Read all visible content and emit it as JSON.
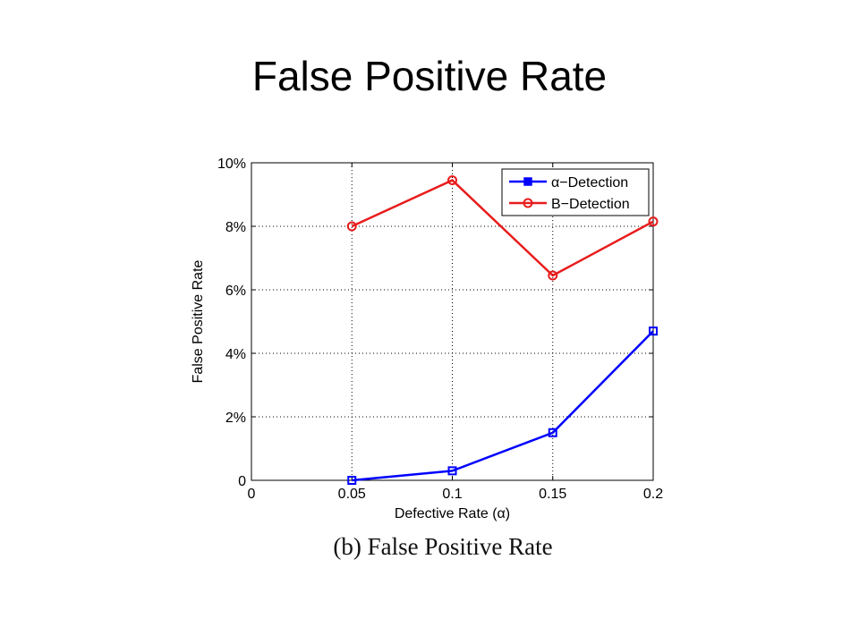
{
  "slide": {
    "title": "False Positive Rate",
    "caption": "(b)  False Positive Rate"
  },
  "chart_data": {
    "type": "line",
    "xlabel": "Defective Rate (α)",
    "ylabel": "False Positive Rate",
    "xlim": [
      0,
      0.2
    ],
    "ylim": [
      0,
      10
    ],
    "x_ticks": [
      {
        "value": 0,
        "label": "0"
      },
      {
        "value": 0.05,
        "label": "0.05"
      },
      {
        "value": 0.1,
        "label": "0.1"
      },
      {
        "value": 0.15,
        "label": "0.15"
      },
      {
        "value": 0.2,
        "label": "0.2"
      }
    ],
    "y_ticks": [
      {
        "value": 0,
        "label": "0"
      },
      {
        "value": 2,
        "label": "2%"
      },
      {
        "value": 4,
        "label": "4%"
      },
      {
        "value": 6,
        "label": "6%"
      },
      {
        "value": 8,
        "label": "8%"
      },
      {
        "value": 10,
        "label": "10%"
      }
    ],
    "grid": true,
    "legend_position": "top-right",
    "x": [
      0.05,
      0.1,
      0.15,
      0.2
    ],
    "series": [
      {
        "name": "α−Detection",
        "values": [
          0.0,
          0.3,
          1.5,
          4.7
        ],
        "color": "#0000ff",
        "marker": "square"
      },
      {
        "name": "B−Detection",
        "values": [
          8.0,
          9.45,
          6.45,
          8.15
        ],
        "color": "#e81c1c",
        "marker": "circle"
      }
    ]
  }
}
